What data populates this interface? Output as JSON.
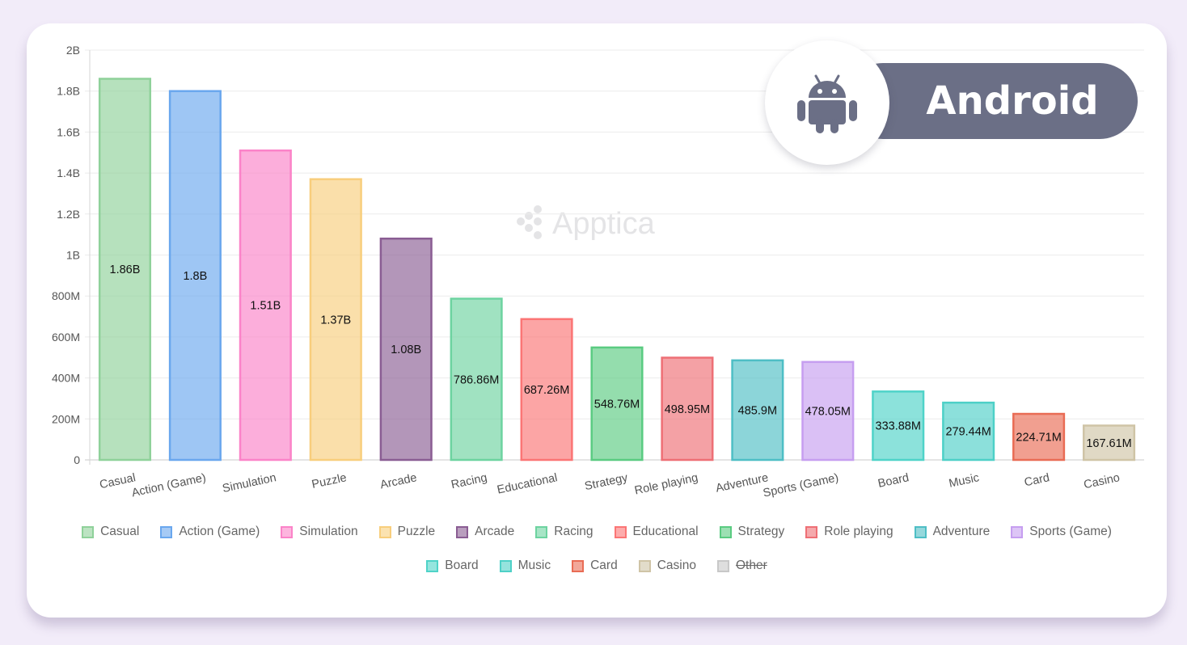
{
  "brand": {
    "watermark": "Apptica"
  },
  "badge": {
    "label": "Android",
    "icon": "android-icon",
    "color": "#6b6f86"
  },
  "chart_data": {
    "type": "bar",
    "title": "",
    "xlabel": "",
    "ylabel": "",
    "ylim": [
      0,
      2000000000
    ],
    "yticks": [
      {
        "value": 0,
        "label": "0"
      },
      {
        "value": 200000000,
        "label": "200M"
      },
      {
        "value": 400000000,
        "label": "400M"
      },
      {
        "value": 600000000,
        "label": "600M"
      },
      {
        "value": 800000000,
        "label": "800M"
      },
      {
        "value": 1000000000,
        "label": "1B"
      },
      {
        "value": 1200000000,
        "label": "1.2B"
      },
      {
        "value": 1400000000,
        "label": "1.4B"
      },
      {
        "value": 1600000000,
        "label": "1.6B"
      },
      {
        "value": 1800000000,
        "label": "1.8B"
      },
      {
        "value": 2000000000,
        "label": "2B"
      }
    ],
    "grid": true,
    "legend_position": "bottom",
    "categories": [
      "Casual",
      "Action (Game)",
      "Simulation",
      "Puzzle",
      "Arcade",
      "Racing",
      "Educational",
      "Strategy",
      "Role playing",
      "Adventure",
      "Sports (Game)",
      "Board",
      "Music",
      "Card",
      "Casino"
    ],
    "values": [
      1860000000,
      1800000000,
      1510000000,
      1370000000,
      1080000000,
      786860000,
      687260000,
      548760000,
      498950000,
      485900000,
      478050000,
      333880000,
      279440000,
      224710000,
      167610000
    ],
    "value_labels": [
      "1.86B",
      "1.8B",
      "1.51B",
      "1.37B",
      "1.08B",
      "786.86M",
      "687.26M",
      "548.76M",
      "498.95M",
      "485.9M",
      "478.05M",
      "333.88M",
      "279.44M",
      "224.71M",
      "167.61M"
    ],
    "colors": [
      "#8fd19a",
      "#6aa7ee",
      "#fb83c8",
      "#f8ce7c",
      "#8a5d93",
      "#6dd3a0",
      "#fb7575",
      "#5acb81",
      "#ee6f75",
      "#4ebec5",
      "#c69ef0",
      "#4fd3c8",
      "#4ed0c7",
      "#e96c55",
      "#cfc4a6"
    ],
    "legend": [
      {
        "label": "Casual",
        "color": "#8fd19a",
        "hidden": false
      },
      {
        "label": "Action (Game)",
        "color": "#6aa7ee",
        "hidden": false
      },
      {
        "label": "Simulation",
        "color": "#fb83c8",
        "hidden": false
      },
      {
        "label": "Puzzle",
        "color": "#f8ce7c",
        "hidden": false
      },
      {
        "label": "Arcade",
        "color": "#8a5d93",
        "hidden": false
      },
      {
        "label": "Racing",
        "color": "#6dd3a0",
        "hidden": false
      },
      {
        "label": "Educational",
        "color": "#fb7575",
        "hidden": false
      },
      {
        "label": "Strategy",
        "color": "#5acb81",
        "hidden": false
      },
      {
        "label": "Role playing",
        "color": "#ee6f75",
        "hidden": false
      },
      {
        "label": "Adventure",
        "color": "#4ebec5",
        "hidden": false
      },
      {
        "label": "Sports (Game)",
        "color": "#c69ef0",
        "hidden": false
      },
      {
        "label": "Board",
        "color": "#4fd3c8",
        "hidden": false
      },
      {
        "label": "Music",
        "color": "#4ed0c7",
        "hidden": false
      },
      {
        "label": "Card",
        "color": "#e96c55",
        "hidden": false
      },
      {
        "label": "Casino",
        "color": "#cfc4a6",
        "hidden": false
      },
      {
        "label": "Other",
        "color": "#c8c8c8",
        "hidden": true
      }
    ]
  }
}
